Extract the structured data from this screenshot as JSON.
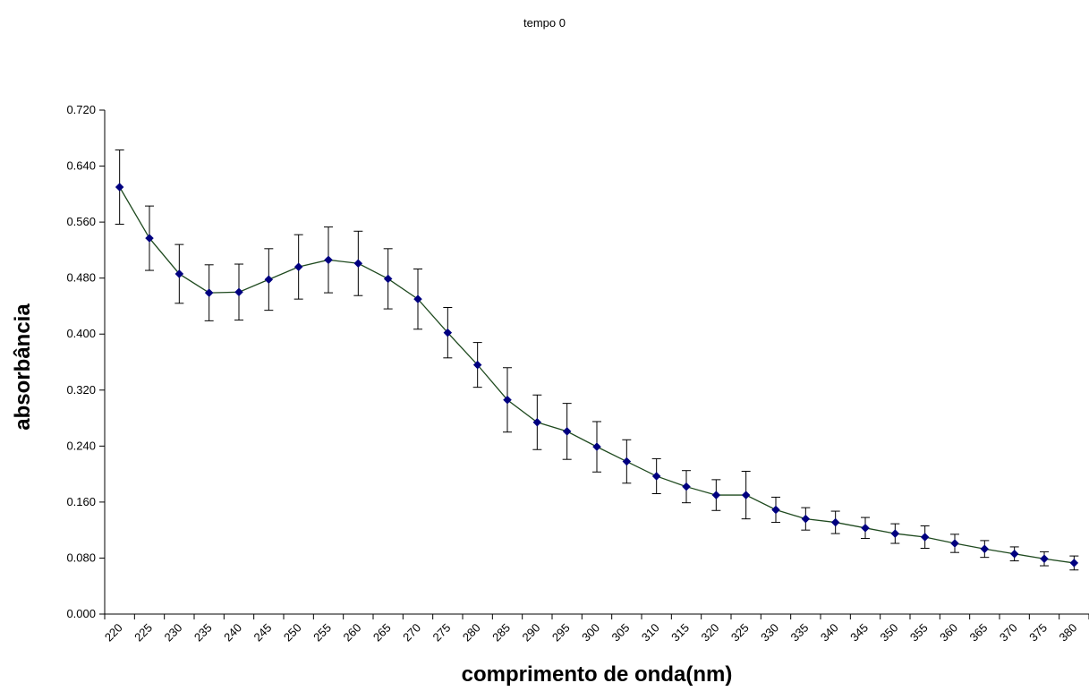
{
  "chart_data": {
    "type": "line",
    "title": "tempo 0",
    "xlabel": "comprimento de onda(nm)",
    "ylabel": "absorbância",
    "categories": [
      "220",
      "225",
      "230",
      "235",
      "240",
      "245",
      "250",
      "255",
      "260",
      "265",
      "270",
      "275",
      "280",
      "285",
      "290",
      "295",
      "300",
      "305",
      "310",
      "315",
      "320",
      "325",
      "330",
      "335",
      "340",
      "345",
      "350",
      "355",
      "360",
      "365",
      "370",
      "375",
      "380"
    ],
    "ylim": [
      0,
      0.72
    ],
    "yticks": [
      "0.000",
      "0.080",
      "0.160",
      "0.240",
      "0.320",
      "0.400",
      "0.480",
      "0.560",
      "0.640",
      "0.720"
    ],
    "series": [
      {
        "values": [
          0.61,
          0.537,
          0.486,
          0.459,
          0.46,
          0.478,
          0.496,
          0.506,
          0.501,
          0.479,
          0.45,
          0.402,
          0.356,
          0.306,
          0.274,
          0.261,
          0.239,
          0.218,
          0.197,
          0.182,
          0.17,
          0.17,
          0.149,
          0.136,
          0.131,
          0.123,
          0.115,
          0.11,
          0.101,
          0.093,
          0.086,
          0.079,
          0.073
        ],
        "errors": [
          0.053,
          0.046,
          0.042,
          0.04,
          0.04,
          0.044,
          0.046,
          0.047,
          0.046,
          0.043,
          0.043,
          0.036,
          0.032,
          0.046,
          0.039,
          0.04,
          0.036,
          0.031,
          0.025,
          0.023,
          0.022,
          0.034,
          0.018,
          0.016,
          0.016,
          0.015,
          0.014,
          0.016,
          0.013,
          0.012,
          0.01,
          0.01,
          0.01
        ],
        "line_color": "#1f4a1f",
        "marker_color": "#000080"
      }
    ],
    "grid": false,
    "legend": "none"
  }
}
